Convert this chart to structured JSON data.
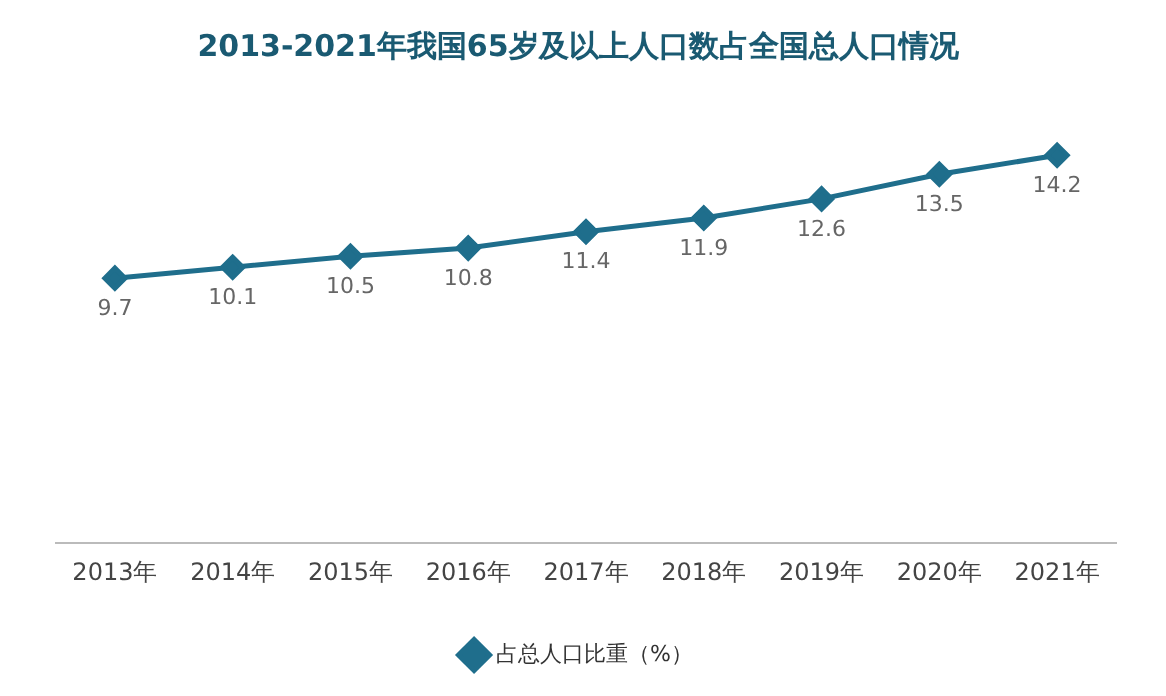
{
  "chart_data": {
    "type": "line",
    "title": "2013-2021年我国65岁及以上人口数占全国总人口情况",
    "categories": [
      "2013年",
      "2014年",
      "2015年",
      "2016年",
      "2017年",
      "2018年",
      "2019年",
      "2020年",
      "2021年"
    ],
    "series": [
      {
        "name": "占总人口比重（%）",
        "color": "#1f6e8c",
        "values": [
          9.7,
          10.1,
          10.5,
          10.8,
          11.4,
          11.9,
          12.6,
          13.5,
          14.2
        ]
      }
    ],
    "tick_labels": "x",
    "grid": false,
    "legend": "bottom",
    "marker": "diamond",
    "line_style": "solid",
    "data_labels": true
  }
}
